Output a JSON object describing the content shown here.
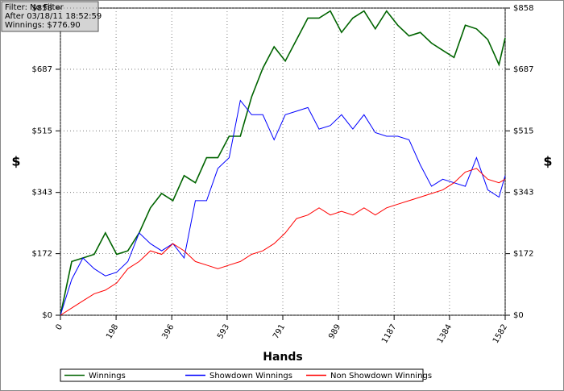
{
  "chart_data": {
    "type": "line",
    "x_label": "Hands",
    "y_label": "$",
    "y2_label": "$",
    "annotations": [
      "Filter: No Filter",
      "After 03/18/11 18:52:59",
      "Winnings: $776.90"
    ],
    "x": [
      0,
      40,
      80,
      120,
      160,
      200,
      240,
      280,
      320,
      360,
      400,
      440,
      480,
      520,
      560,
      600,
      640,
      680,
      720,
      760,
      800,
      840,
      880,
      920,
      960,
      1000,
      1040,
      1080,
      1120,
      1160,
      1200,
      1240,
      1280,
      1320,
      1360,
      1400,
      1440,
      1480,
      1520,
      1560,
      1582
    ],
    "series": [
      {
        "name": "Winnings",
        "color": "#006400",
        "values": [
          0,
          150,
          160,
          170,
          230,
          170,
          180,
          230,
          300,
          340,
          320,
          390,
          370,
          440,
          440,
          500,
          500,
          610,
          690,
          750,
          710,
          770,
          830,
          830,
          850,
          790,
          830,
          850,
          800,
          850,
          810,
          780,
          790,
          760,
          740,
          720,
          810,
          800,
          770,
          700,
          775
        ]
      },
      {
        "name": "Showdown Winnings",
        "color": "#0000ff",
        "values": [
          0,
          100,
          160,
          130,
          110,
          120,
          150,
          230,
          200,
          180,
          200,
          160,
          320,
          320,
          410,
          440,
          600,
          560,
          560,
          490,
          560,
          570,
          580,
          520,
          530,
          560,
          520,
          560,
          510,
          500,
          500,
          490,
          420,
          360,
          380,
          370,
          360,
          440,
          350,
          330,
          390
        ]
      },
      {
        "name": "Non Showdown Winnings",
        "color": "#ff0000",
        "values": [
          0,
          20,
          40,
          60,
          70,
          90,
          130,
          150,
          180,
          170,
          200,
          180,
          150,
          140,
          130,
          140,
          150,
          170,
          180,
          200,
          230,
          270,
          280,
          300,
          280,
          290,
          280,
          300,
          280,
          300,
          310,
          320,
          330,
          340,
          350,
          370,
          400,
          410,
          380,
          370,
          380
        ]
      }
    ],
    "xlim": [
      0,
      1582
    ],
    "xticks": [
      0,
      198,
      396,
      593,
      791,
      989,
      1187,
      1384,
      1582
    ],
    "ylim": [
      0,
      858
    ],
    "yticks": [
      {
        "value": 0,
        "label": "$0"
      },
      {
        "value": 172,
        "label": "$172"
      },
      {
        "value": 343,
        "label": "$343"
      },
      {
        "value": 515,
        "label": "$515"
      },
      {
        "value": 687,
        "label": "$687"
      },
      {
        "value": 858,
        "label": "$858"
      }
    ],
    "y2lim": [
      0,
      858
    ],
    "y2ticks": [
      {
        "value": 0,
        "label": "$0"
      },
      {
        "value": 172,
        "label": "$172"
      },
      {
        "value": 343,
        "label": "$343"
      },
      {
        "value": 515,
        "label": "$515"
      },
      {
        "value": 687,
        "label": "$687"
      },
      {
        "value": 858,
        "label": "$858"
      }
    ],
    "grid": true,
    "legend": "bottom"
  }
}
